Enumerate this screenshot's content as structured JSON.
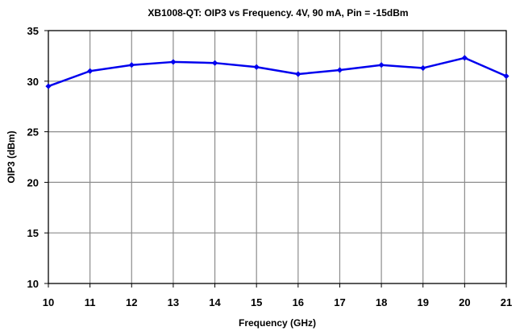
{
  "chart_data": {
    "type": "line",
    "title": "XB1008-QT:  OIP3 vs Frequency. 4V, 90 mA, Pin = -15dBm",
    "xlabel": "Frequency (GHz)",
    "ylabel": "OIP3 (dBm)",
    "xlim": [
      10,
      21
    ],
    "ylim": [
      10,
      35
    ],
    "x_ticks": [
      "10",
      "11",
      "12",
      "13",
      "14",
      "15",
      "16",
      "17",
      "18",
      "19",
      "20",
      "21"
    ],
    "y_ticks": [
      "10",
      "15",
      "20",
      "25",
      "30",
      "35"
    ],
    "grid": true,
    "legend": "none",
    "series": [
      {
        "color": "#0000ee",
        "x": [
          10,
          11,
          12,
          13,
          14,
          15,
          16,
          17,
          18,
          19,
          20,
          21
        ],
        "y": [
          29.5,
          31.0,
          31.6,
          31.9,
          31.8,
          31.4,
          30.7,
          31.1,
          31.6,
          31.3,
          32.3,
          30.5
        ]
      }
    ]
  }
}
